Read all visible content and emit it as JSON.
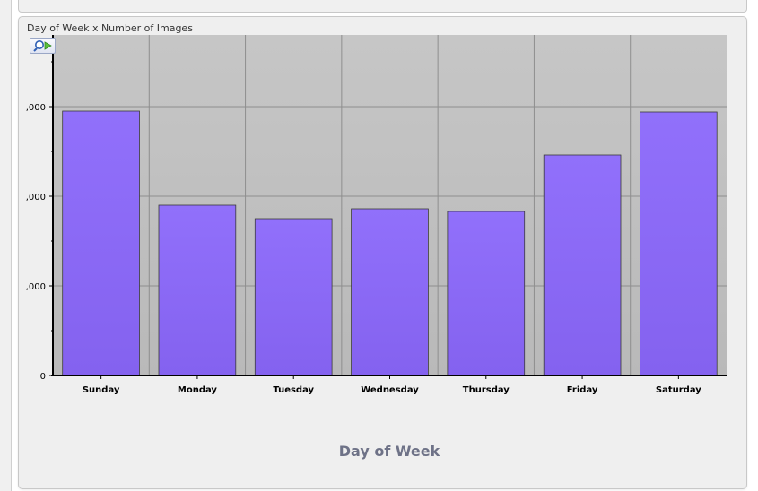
{
  "panel": {
    "title": "Day of Week x Number of Images"
  },
  "toolbar": {
    "zoom_tool_icon": "magnifier-arrow-icon"
  },
  "colors": {
    "bar_fill": "#8a6cf7",
    "bar_stroke": "#3a3a3a",
    "plot_background": "#c3c3c3",
    "grid": "#8e8e8e",
    "axis": "#000000",
    "axis_title": "#6e7287"
  },
  "chart_data": {
    "type": "bar",
    "title": "",
    "xlabel": "Day of Week",
    "ylabel": "",
    "categories": [
      "Sunday",
      "Monday",
      "Tuesday",
      "Wednesday",
      "Thursday",
      "Friday",
      "Saturday"
    ],
    "values": [
      2950,
      1900,
      1750,
      1860,
      1830,
      2460,
      2940
    ],
    "ylim": [
      0,
      3800
    ],
    "y_ticks": [
      0,
      1000,
      2000,
      3000
    ],
    "y_tick_labels": [
      "0",
      ",000",
      ",000",
      ",000"
    ],
    "grid": true,
    "legend": "none"
  }
}
